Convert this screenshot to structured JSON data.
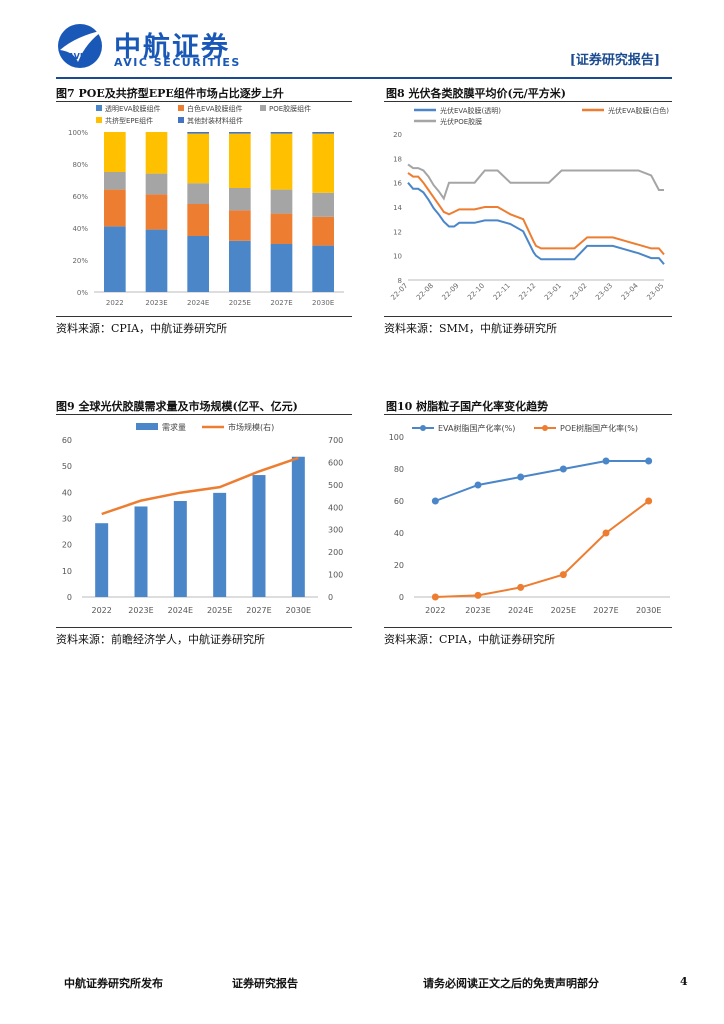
{
  "header": {
    "logo_cn": "中航证券",
    "logo_en": "AVIC SECURITIES",
    "logo_badge": "AVIC",
    "report_tag": "[证券研究报告]"
  },
  "figures": {
    "fig7": {
      "title": "图7 POE及共挤型EPE组件市场占比逐步上升",
      "source": "资料来源：CPIA，中航证券研究所"
    },
    "fig8": {
      "title": "图8 光伏各类胶膜平均价(元/平方米)",
      "source": "资料来源：SMM，中航证券研究所"
    },
    "fig9": {
      "title": "图9 全球光伏胶膜需求量及市场规模(亿平、亿元)",
      "source": "资料来源：前瞻经济学人，中航证券研究所"
    },
    "fig10": {
      "title": "图10 树脂粒子国产化率变化趋势",
      "source": "资料来源：CPIA，中航证券研究所"
    }
  },
  "chart_data": [
    {
      "id": "fig7",
      "type": "bar",
      "stacked": true,
      "categories": [
        "2022",
        "2023E",
        "2024E",
        "2025E",
        "2027E",
        "2030E"
      ],
      "series": [
        {
          "name": "透明EVA胶膜组件",
          "color": "#4a86c8",
          "values": [
            41,
            39,
            35,
            32,
            30,
            29
          ]
        },
        {
          "name": "白色EVA胶膜组件",
          "color": "#ed7d31",
          "values": [
            23,
            22,
            20,
            19,
            19,
            18
          ]
        },
        {
          "name": "POE胶膜组件",
          "color": "#a5a5a5",
          "values": [
            11,
            13,
            13,
            14,
            15,
            15
          ]
        },
        {
          "name": "共挤型EPE组件",
          "color": "#ffc000",
          "values": [
            25,
            26,
            31,
            34,
            35,
            37
          ]
        },
        {
          "name": "其他封装材料组件",
          "color": "#4472c4",
          "values": [
            0,
            0,
            1,
            1,
            1,
            1
          ]
        }
      ],
      "ylim": [
        0,
        100
      ],
      "yticks": [
        "0%",
        "20%",
        "40%",
        "60%",
        "80%",
        "100%"
      ]
    },
    {
      "id": "fig8",
      "type": "line",
      "categories": [
        "22-07",
        "22-08",
        "22-09",
        "22-10",
        "22-11",
        "22-12",
        "23-01",
        "23-02",
        "23-03",
        "23-04",
        "23-05"
      ],
      "x": [
        0,
        0.2,
        0.4,
        0.6,
        0.8,
        1.0,
        1.2,
        1.4,
        1.6,
        1.8,
        2.0,
        2.3,
        2.6,
        3.0,
        3.5,
        4.0,
        4.5,
        4.9,
        5.0,
        5.2,
        5.5,
        6.0,
        6.5,
        7.0,
        7.5,
        8.0,
        8.5,
        9.0,
        9.5,
        9.8,
        10.0
      ],
      "ylim": [
        8,
        20
      ],
      "yticks": [
        8,
        10,
        12,
        14,
        16,
        18,
        20
      ],
      "series": [
        {
          "name": "光伏EVA胶膜(透明)",
          "color": "#4a86c8",
          "values": [
            16.0,
            15.5,
            15.5,
            15.2,
            14.6,
            13.9,
            13.4,
            12.8,
            12.4,
            12.4,
            12.7,
            12.7,
            12.7,
            12.9,
            12.9,
            12.6,
            12.0,
            10.3,
            10.0,
            9.7,
            9.7,
            9.7,
            9.7,
            10.8,
            10.8,
            10.8,
            10.5,
            10.2,
            9.8,
            9.8,
            9.3
          ]
        },
        {
          "name": "光伏EVA胶膜(白色)",
          "color": "#ed7d31",
          "values": [
            16.8,
            16.5,
            16.5,
            16.0,
            15.4,
            14.8,
            14.2,
            13.6,
            13.4,
            13.6,
            13.8,
            13.8,
            13.8,
            14.0,
            14.0,
            13.4,
            13.0,
            11.2,
            10.8,
            10.6,
            10.6,
            10.6,
            10.6,
            11.5,
            11.5,
            11.5,
            11.2,
            10.9,
            10.6,
            10.6,
            10.1
          ]
        },
        {
          "name": "光伏POE胶膜",
          "color": "#a5a5a5",
          "values": [
            17.5,
            17.2,
            17.2,
            17.0,
            16.5,
            15.8,
            15.3,
            14.7,
            16.0,
            16.0,
            16.0,
            16.0,
            16.0,
            17.0,
            17.0,
            16.0,
            16.0,
            16.0,
            16.0,
            16.0,
            16.0,
            17.0,
            17.0,
            17.0,
            17.0,
            17.0,
            17.0,
            17.0,
            16.6,
            15.4,
            15.4
          ]
        }
      ]
    },
    {
      "id": "fig9",
      "type": "bar+line",
      "categories": [
        "2022",
        "2023E",
        "2024E",
        "2025E",
        "2027E",
        "2030E"
      ],
      "series": [
        {
          "name": "需求量",
          "type": "bar",
          "axis": "left",
          "color": "#4a86c8",
          "values": [
            28.2,
            34.6,
            36.7,
            39.8,
            46.6,
            53.6
          ]
        },
        {
          "name": "市场规模(右)",
          "type": "line",
          "axis": "right",
          "color": "#ed7d31",
          "values": [
            370,
            430,
            465,
            490,
            560,
            620
          ]
        }
      ],
      "ylim_left": [
        0,
        60
      ],
      "yticks_left": [
        0,
        10,
        20,
        30,
        40,
        50,
        60
      ],
      "ylim_right": [
        0,
        700
      ],
      "yticks_right": [
        0,
        100,
        200,
        300,
        400,
        500,
        600,
        700
      ]
    },
    {
      "id": "fig10",
      "type": "line",
      "categories": [
        "2022",
        "2023E",
        "2024E",
        "2025E",
        "2027E",
        "2030E"
      ],
      "series": [
        {
          "name": "EVA树脂国产化率(%)",
          "color": "#4a86c8",
          "values": [
            60,
            70,
            75,
            80,
            85,
            85
          ]
        },
        {
          "name": "POE树脂国产化率(%)",
          "color": "#ed7d31",
          "values": [
            0,
            1,
            6,
            14,
            40,
            60
          ]
        }
      ],
      "ylim": [
        0,
        100
      ],
      "yticks": [
        0,
        20,
        40,
        60,
        80,
        100
      ]
    }
  ],
  "footer": {
    "left": "中航证券研究所发布",
    "center": "证券研究报告",
    "right": "请务必阅读正文之后的免责声明部分",
    "page": "4"
  }
}
